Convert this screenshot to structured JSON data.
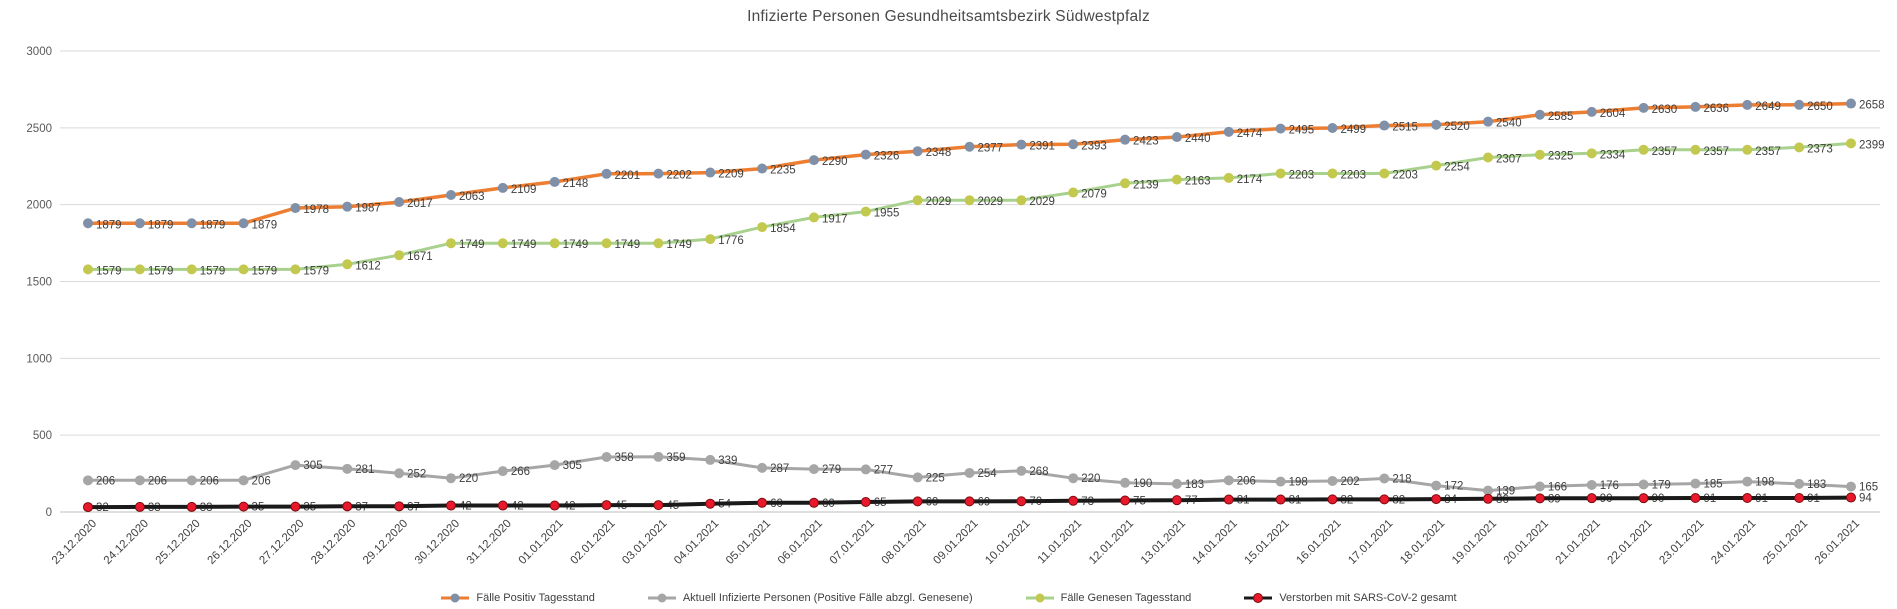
{
  "title": "Infizierte Personen Gesundheitsamtsbezirk Südwestpfalz",
  "chart_data": {
    "type": "line",
    "title": "Infizierte Personen Gesundheitsamtsbezirk Südwestpfalz",
    "grid": true,
    "legend_position": "bottom",
    "y_axis": {
      "min": 0,
      "max": 3000,
      "step": 500,
      "ticks": [
        0,
        500,
        1000,
        1500,
        2000,
        2500,
        3000
      ]
    },
    "x_labels": [
      "23.12.2020",
      "24.12.2020",
      "25.12.2020",
      "26.12.2020",
      "27.12.2020",
      "28.12.2020",
      "29.12.2020",
      "30.12.2020",
      "31.12.2020",
      "01.01.2021",
      "02.01.2021",
      "03.01.2021",
      "04.01.2021",
      "05.01.2021",
      "06.01.2021",
      "07.01.2021",
      "08.01.2021",
      "09.01.2021",
      "10.01.2021",
      "11.01.2021",
      "12.01.2021",
      "13.01.2021",
      "14.01.2021",
      "15.01.2021",
      "16.01.2021",
      "17.01.2021",
      "18.01.2021",
      "19.01.2021",
      "20.01.2021",
      "21.01.2021",
      "22.01.2021",
      "23.01.2021",
      "24.01.2021",
      "25.01.2021",
      "26.01.2021"
    ],
    "series": [
      {
        "name": "Fälle Positiv Tagesstand",
        "line_color": "#ED7D31",
        "line_width": 3.5,
        "marker_color": "#7F90A8",
        "marker_radius": 5,
        "label_dy": 5,
        "labels_behind_line": false,
        "values": [
          1879,
          1879,
          1879,
          1879,
          1978,
          1987,
          2017,
          2063,
          2109,
          2148,
          2201,
          2202,
          2209,
          2235,
          2290,
          2326,
          2348,
          2377,
          2391,
          2393,
          2423,
          2440,
          2474,
          2495,
          2499,
          2515,
          2520,
          2540,
          2585,
          2604,
          2630,
          2636,
          2649,
          2650,
          2658
        ]
      },
      {
        "name": "Aktuell Infizierte Personen (Positive Fälle abzgl. Genesene)",
        "line_color": "#A6A6A6",
        "line_width": 3,
        "marker_color": "#A6A6A6",
        "marker_radius": 5,
        "label_dy": 4,
        "labels_behind_line": false,
        "values": [
          206,
          206,
          206,
          206,
          305,
          281,
          252,
          220,
          266,
          305,
          358,
          359,
          339,
          287,
          279,
          277,
          225,
          254,
          268,
          220,
          190,
          183,
          206,
          198,
          202,
          218,
          172,
          139,
          166,
          176,
          179,
          185,
          198,
          183,
          165
        ]
      },
      {
        "name": "Fälle Genesen Tagesstand",
        "line_color": "#A9D18E",
        "line_width": 3,
        "marker_color": "#C3C94E",
        "marker_radius": 5,
        "label_dy": 5,
        "labels_behind_line": false,
        "values": [
          1579,
          1579,
          1579,
          1579,
          1579,
          1612,
          1671,
          1749,
          1749,
          1749,
          1749,
          1749,
          1776,
          1854,
          1917,
          1955,
          2029,
          2029,
          2029,
          2079,
          2139,
          2163,
          2174,
          2203,
          2203,
          2203,
          2254,
          2307,
          2325,
          2334,
          2357,
          2357,
          2357,
          2373,
          2399
        ]
      },
      {
        "name": "Verstorben mit SARS-CoV-2 gesamt",
        "line_color": "#1A1A1A",
        "line_width": 4,
        "marker_color": "#E8192C",
        "marker_stroke": "#7A0C0C",
        "marker_radius": 4.5,
        "label_dy": 4,
        "labels_behind_line": true,
        "values": [
          32,
          33,
          33,
          35,
          35,
          37,
          37,
          42,
          42,
          42,
          45,
          45,
          54,
          60,
          60,
          65,
          69,
          69,
          70,
          73,
          75,
          77,
          81,
          81,
          82,
          82,
          84,
          86,
          89,
          90,
          90,
          91,
          91,
          91,
          94
        ]
      }
    ]
  }
}
